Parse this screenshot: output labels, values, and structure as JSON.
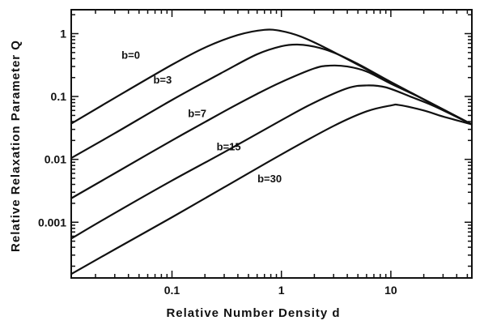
{
  "chart_data": {
    "type": "line",
    "title": "",
    "xlabel": "Relative Number Density d",
    "ylabel": "Relative Relaxation Parameter Q",
    "x_scale": "log",
    "y_scale": "log",
    "xlim": [
      0.012,
      55
    ],
    "ylim": [
      0.00013,
      2.4
    ],
    "x_tick_labels": [
      {
        "value": 0.1,
        "label": "0.1"
      },
      {
        "value": 1,
        "label": "1"
      },
      {
        "value": 10,
        "label": "10"
      }
    ],
    "y_tick_labels": [
      {
        "value": 0.001,
        "label": "0.001"
      },
      {
        "value": 0.01,
        "label": "0.01"
      },
      {
        "value": 0.1,
        "label": "0.1"
      },
      {
        "value": 1,
        "label": "1"
      }
    ],
    "grid": false,
    "legend": "none",
    "series": [
      {
        "name": "b=0",
        "label": "b=0",
        "x": [
          0.012,
          0.03,
          0.1,
          0.2,
          0.4,
          0.7,
          1.0,
          1.5,
          2.5,
          5,
          10,
          20,
          55
        ],
        "y": [
          0.037,
          0.095,
          0.32,
          0.6,
          0.95,
          1.15,
          1.1,
          0.9,
          0.6,
          0.32,
          0.17,
          0.09,
          0.036
        ]
      },
      {
        "name": "b=3",
        "label": "b=3",
        "x": [
          0.012,
          0.03,
          0.1,
          0.3,
          0.6,
          1.0,
          1.4,
          2.0,
          3.0,
          5,
          10,
          20,
          55
        ],
        "y": [
          0.0105,
          0.026,
          0.088,
          0.25,
          0.47,
          0.63,
          0.67,
          0.62,
          0.5,
          0.33,
          0.17,
          0.09,
          0.036
        ]
      },
      {
        "name": "b=7",
        "label": "b=7",
        "x": [
          0.012,
          0.03,
          0.1,
          0.3,
          0.6,
          1.0,
          2.0,
          2.8,
          4.0,
          6,
          10,
          20,
          55
        ],
        "y": [
          0.0024,
          0.006,
          0.02,
          0.058,
          0.11,
          0.17,
          0.28,
          0.31,
          0.3,
          0.25,
          0.16,
          0.09,
          0.036
        ]
      },
      {
        "name": "b=15",
        "label": "b=15",
        "x": [
          0.012,
          0.03,
          0.1,
          0.3,
          1.0,
          2.0,
          4.0,
          6,
          9,
          15,
          25,
          55
        ],
        "y": [
          0.00055,
          0.0014,
          0.0046,
          0.013,
          0.042,
          0.08,
          0.135,
          0.15,
          0.14,
          0.1,
          0.07,
          0.036
        ]
      },
      {
        "name": "b=30",
        "label": "b=30",
        "x": [
          0.012,
          0.03,
          0.1,
          0.3,
          1.0,
          3.0,
          6,
          10,
          12,
          20,
          30,
          55
        ],
        "y": [
          0.00015,
          0.00037,
          0.0012,
          0.0036,
          0.012,
          0.034,
          0.058,
          0.072,
          0.073,
          0.06,
          0.048,
          0.036
        ]
      }
    ],
    "curve_labels": [
      {
        "text": "b=0",
        "x": 0.042,
        "y": 0.4
      },
      {
        "text": "b=3",
        "x": 0.082,
        "y": 0.16
      },
      {
        "text": "b=7",
        "x": 0.17,
        "y": 0.047
      },
      {
        "text": "b=15",
        "x": 0.33,
        "y": 0.014
      },
      {
        "text": "b=30",
        "x": 0.78,
        "y": 0.0043
      }
    ]
  }
}
